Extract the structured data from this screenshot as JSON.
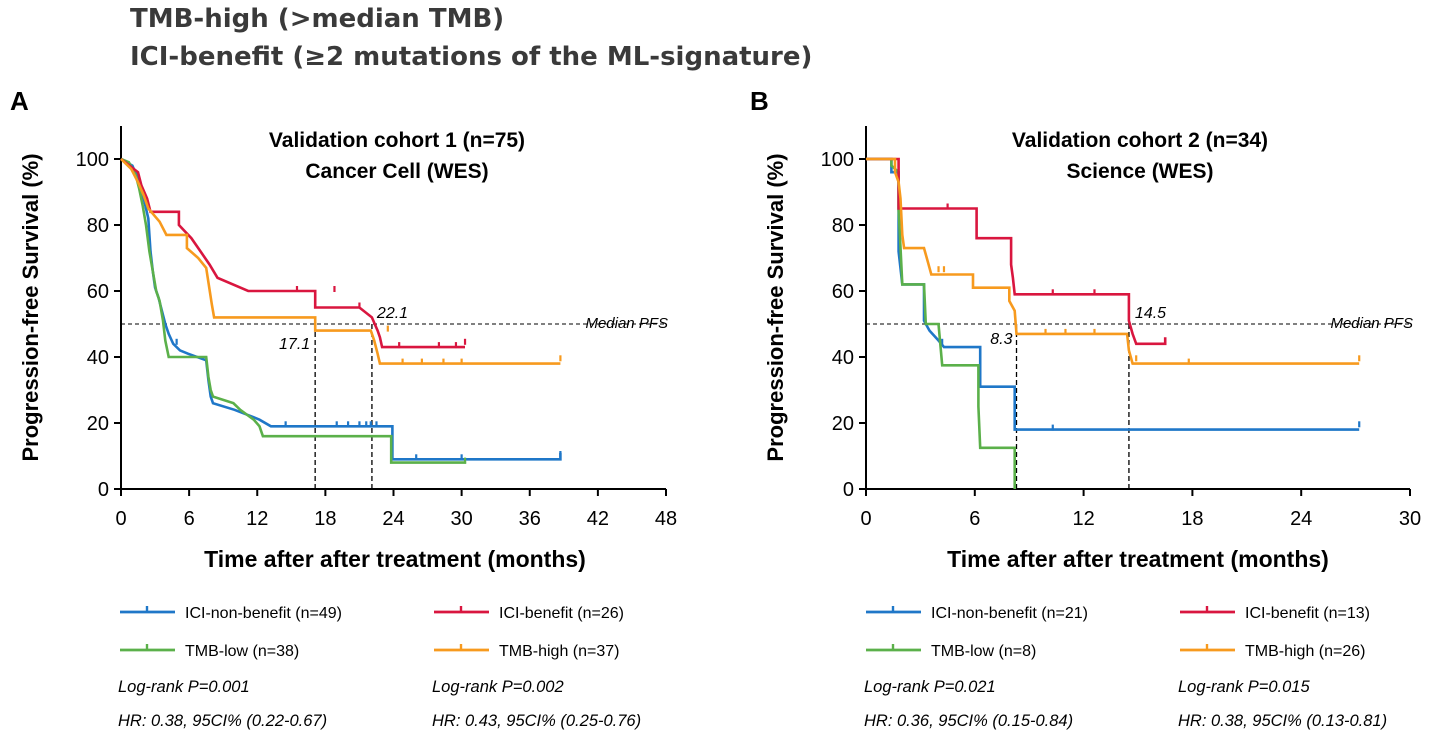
{
  "header": {
    "line1": "TMB-high (>median TMB)",
    "line2": "ICI-benefit (≥2 mutations of the ML-signature)"
  },
  "colors": {
    "ici_non_benefit": "#1f77c8",
    "ici_benefit": "#d9163f",
    "tmb_low": "#5bb04a",
    "tmb_high": "#f79a1e"
  },
  "chart_data": [
    {
      "type": "line",
      "panel_label": "A",
      "title_line1": "Validation cohort 1 (n=75)",
      "title_line2": "Cancer Cell (WES)",
      "xlabel": "Time after after treatment (months)",
      "ylabel": "Progression-free Survival (%)",
      "xlim": [
        0,
        48
      ],
      "ylim": [
        0,
        110
      ],
      "xticks": [
        0,
        6,
        12,
        18,
        24,
        30,
        36,
        42,
        48
      ],
      "yticks": [
        0,
        20,
        40,
        60,
        80,
        100
      ],
      "median_line": {
        "y": 50,
        "label": "Median PFS"
      },
      "medians": [
        {
          "x": 17.1,
          "label": "17.1"
        },
        {
          "x": 22.1,
          "label": "22.1"
        }
      ],
      "series": [
        {
          "key": "ici_non_benefit",
          "name": "ICI-non-benefit (n=49)",
          "points": [
            [
              0,
              100
            ],
            [
              1,
              98
            ],
            [
              1.5,
              94
            ],
            [
              2,
              88
            ],
            [
              2.4,
              82
            ],
            [
              2.6,
              72
            ],
            [
              2.8,
              66
            ],
            [
              3.0,
              61
            ],
            [
              3.3,
              58
            ],
            [
              3.6,
              54
            ],
            [
              3.9,
              50
            ],
            [
              4.2,
              47
            ],
            [
              4.6,
              44
            ],
            [
              5.2,
              42
            ],
            [
              5.9,
              41
            ],
            [
              7.5,
              39
            ],
            [
              7.7,
              33
            ],
            [
              7.9,
              28
            ],
            [
              8.1,
              26
            ],
            [
              10,
              24
            ],
            [
              11.5,
              22
            ],
            [
              12.2,
              21
            ],
            [
              13.2,
              19
            ],
            [
              23.9,
              19
            ],
            [
              23.9,
              9
            ],
            [
              38.7,
              9
            ],
            [
              38.7,
              11
            ]
          ],
          "censors": [
            [
              4.9,
              44
            ],
            [
              14.5,
              19
            ],
            [
              19,
              19
            ],
            [
              20,
              19
            ],
            [
              21,
              19
            ],
            [
              21.6,
              19
            ],
            [
              22,
              19
            ],
            [
              22.5,
              19
            ],
            [
              26,
              9
            ],
            [
              30,
              9
            ],
            [
              38.7,
              10
            ]
          ]
        },
        {
          "key": "tmb_low",
          "name": "TMB-low (n=38)",
          "points": [
            [
              0,
              100
            ],
            [
              0.7,
              99
            ],
            [
              1.3,
              95
            ],
            [
              1.6,
              91
            ],
            [
              1.9,
              86
            ],
            [
              2.2,
              80
            ],
            [
              2.5,
              72
            ],
            [
              2.8,
              66
            ],
            [
              3.1,
              60
            ],
            [
              3.4,
              57
            ],
            [
              3.7,
              51
            ],
            [
              3.9,
              45
            ],
            [
              4.2,
              40
            ],
            [
              5.5,
              40
            ],
            [
              7.5,
              40
            ],
            [
              7.7,
              34
            ],
            [
              7.9,
              30
            ],
            [
              8.1,
              28
            ],
            [
              9.9,
              26
            ],
            [
              10.5,
              24
            ],
            [
              11.7,
              21
            ],
            [
              12.2,
              19
            ],
            [
              12.5,
              16
            ],
            [
              13.2,
              16
            ],
            [
              23.8,
              16
            ],
            [
              23.8,
              8
            ],
            [
              30.4,
              8
            ]
          ],
          "censors": [
            [
              30.3,
              8
            ]
          ]
        },
        {
          "key": "ici_benefit",
          "name": "ICI-benefit (n=26)",
          "points": [
            [
              0,
              100
            ],
            [
              1.5,
              96
            ],
            [
              1.8,
              92
            ],
            [
              2.3,
              88
            ],
            [
              2.6,
              84
            ],
            [
              5.1,
              84
            ],
            [
              5.1,
              80
            ],
            [
              6.2,
              76
            ],
            [
              7,
              72
            ],
            [
              7.8,
              68
            ],
            [
              8.5,
              64
            ],
            [
              11.2,
              60
            ],
            [
              17.1,
              60
            ],
            [
              17.1,
              55
            ],
            [
              21,
              55
            ],
            [
              22.1,
              52
            ],
            [
              22.6,
              48
            ],
            [
              22.8,
              46
            ],
            [
              23.0,
              43
            ],
            [
              30.3,
              43
            ]
          ],
          "censors": [
            [
              15.5,
              60
            ],
            [
              18.8,
              60
            ],
            [
              21,
              55
            ],
            [
              24.5,
              43
            ],
            [
              28,
              43
            ],
            [
              29.5,
              43
            ],
            [
              30.3,
              44
            ]
          ]
        },
        {
          "key": "tmb_high",
          "name": "TMB-high (n=37)",
          "points": [
            [
              0,
              100
            ],
            [
              0.9,
              97
            ],
            [
              1.5,
              93
            ],
            [
              2,
              89
            ],
            [
              2.4,
              85
            ],
            [
              3.4,
              81
            ],
            [
              4,
              77
            ],
            [
              5.8,
              77
            ],
            [
              5.8,
              73
            ],
            [
              6.8,
              70
            ],
            [
              7.5,
              67
            ],
            [
              8,
              56
            ],
            [
              8.2,
              52
            ],
            [
              17.1,
              52
            ],
            [
              17.1,
              48
            ],
            [
              22.0,
              48
            ],
            [
              22.3,
              45
            ],
            [
              22.6,
              41
            ],
            [
              22.8,
              38
            ],
            [
              38.7,
              38
            ]
          ],
          "censors": [
            [
              23.5,
              48
            ],
            [
              24.8,
              38
            ],
            [
              26.5,
              38
            ],
            [
              28.4,
              38
            ],
            [
              30,
              38
            ],
            [
              38.7,
              39
            ]
          ]
        }
      ],
      "legend": [
        {
          "key": "ici_non_benefit",
          "label": "ICI-non-benefit (n=49)"
        },
        {
          "key": "tmb_low",
          "label": "TMB-low (n=38)"
        },
        {
          "key": "ici_benefit",
          "label": "ICI-benefit (n=26)"
        },
        {
          "key": "tmb_high",
          "label": "TMB-high (n=37)"
        }
      ],
      "stats": [
        {
          "logrank": "Log-rank P=0.001",
          "hr": "HR: 0.38, 95CI% (0.22-0.67)"
        },
        {
          "logrank": "Log-rank P=0.002",
          "hr": "HR: 0.43, 95CI% (0.25-0.76)"
        }
      ]
    },
    {
      "type": "line",
      "panel_label": "B",
      "title_line1": "Validation cohort 2 (n=34)",
      "title_line2": "Science (WES)",
      "xlabel": "Time after after treatment (months)",
      "ylabel": "Progression-free Survival (%)",
      "xlim": [
        0,
        30
      ],
      "ylim": [
        0,
        110
      ],
      "xticks": [
        0,
        6,
        12,
        18,
        24,
        30
      ],
      "yticks": [
        0,
        20,
        40,
        60,
        80,
        100
      ],
      "median_line": {
        "y": 50,
        "label": "Median PFS"
      },
      "medians": [
        {
          "x": 8.3,
          "label": "8.3"
        },
        {
          "x": 14.5,
          "label": "14.5"
        }
      ],
      "series": [
        {
          "key": "ici_non_benefit",
          "name": "ICI-non-benefit (n=21)",
          "points": [
            [
              0,
              100
            ],
            [
              1.4,
              100
            ],
            [
              1.4,
              96
            ],
            [
              1.8,
              96
            ],
            [
              1.8,
              72
            ],
            [
              2.0,
              62
            ],
            [
              3.2,
              62
            ],
            [
              3.2,
              51
            ],
            [
              3.5,
              48
            ],
            [
              4.0,
              45
            ],
            [
              4.3,
              43
            ],
            [
              6.3,
              43
            ],
            [
              6.3,
              31
            ],
            [
              8.2,
              31
            ],
            [
              8.2,
              18
            ],
            [
              27.2,
              18
            ]
          ],
          "censors": [
            [
              4.2,
              44
            ],
            [
              10.3,
              18
            ],
            [
              27.2,
              19
            ]
          ]
        },
        {
          "key": "tmb_low",
          "name": "TMB-low (n=8)",
          "points": [
            [
              0,
              100
            ],
            [
              1.4,
              100
            ],
            [
              1.4,
              98
            ],
            [
              1.8,
              96
            ],
            [
              1.8,
              85
            ],
            [
              2.0,
              62
            ],
            [
              3.2,
              62
            ],
            [
              3.3,
              50
            ],
            [
              4.0,
              50
            ],
            [
              4.2,
              37.5
            ],
            [
              6.2,
              37.5
            ],
            [
              6.2,
              25
            ],
            [
              6.3,
              12.5
            ],
            [
              8.2,
              12.5
            ],
            [
              8.2,
              0
            ]
          ],
          "censors": []
        },
        {
          "key": "ici_benefit",
          "name": "ICI-benefit (n=13)",
          "points": [
            [
              0,
              100
            ],
            [
              1.8,
              100
            ],
            [
              1.8,
              85
            ],
            [
              6.1,
              85
            ],
            [
              6.1,
              76
            ],
            [
              8.0,
              76
            ],
            [
              8.0,
              68
            ],
            [
              8.1,
              64
            ],
            [
              8.2,
              59
            ],
            [
              14.5,
              59
            ],
            [
              14.5,
              51
            ],
            [
              14.7,
              47
            ],
            [
              14.9,
              44
            ],
            [
              16.5,
              44
            ],
            [
              16.5,
              46
            ]
          ],
          "censors": [
            [
              4.5,
              85
            ],
            [
              10.3,
              59
            ],
            [
              12.6,
              59
            ]
          ]
        },
        {
          "key": "tmb_high",
          "name": "TMB-high (n=26)",
          "points": [
            [
              0,
              100
            ],
            [
              1.6,
              100
            ],
            [
              1.6,
              96
            ],
            [
              1.8,
              93
            ],
            [
              1.9,
              88
            ],
            [
              2.0,
              77
            ],
            [
              2.1,
              73
            ],
            [
              3.2,
              73
            ],
            [
              3.4,
              69
            ],
            [
              3.6,
              65
            ],
            [
              5.9,
              65
            ],
            [
              5.9,
              61
            ],
            [
              7.9,
              61
            ],
            [
              7.9,
              57
            ],
            [
              8.2,
              54
            ],
            [
              8.3,
              47
            ],
            [
              14.4,
              47
            ],
            [
              14.5,
              42
            ],
            [
              14.7,
              38
            ],
            [
              27.2,
              38
            ]
          ],
          "censors": [
            [
              4.0,
              66
            ],
            [
              4.3,
              66
            ],
            [
              9.9,
              47
            ],
            [
              11,
              47
            ],
            [
              12.6,
              47
            ],
            [
              14.9,
              39
            ],
            [
              17.8,
              38
            ],
            [
              27.2,
              39
            ]
          ]
        }
      ],
      "legend": [
        {
          "key": "ici_non_benefit",
          "label": "ICI-non-benefit (n=21)"
        },
        {
          "key": "tmb_low",
          "label": "TMB-low (n=8)"
        },
        {
          "key": "ici_benefit",
          "label": "ICI-benefit (n=13)"
        },
        {
          "key": "tmb_high",
          "label": "TMB-high (n=26)"
        }
      ],
      "stats": [
        {
          "logrank": "Log-rank P=0.021",
          "hr": "HR: 0.36, 95CI% (0.15-0.84)"
        },
        {
          "logrank": "Log-rank P=0.015",
          "hr": "HR: 0.38, 95CI% (0.13-0.81)"
        }
      ]
    }
  ]
}
